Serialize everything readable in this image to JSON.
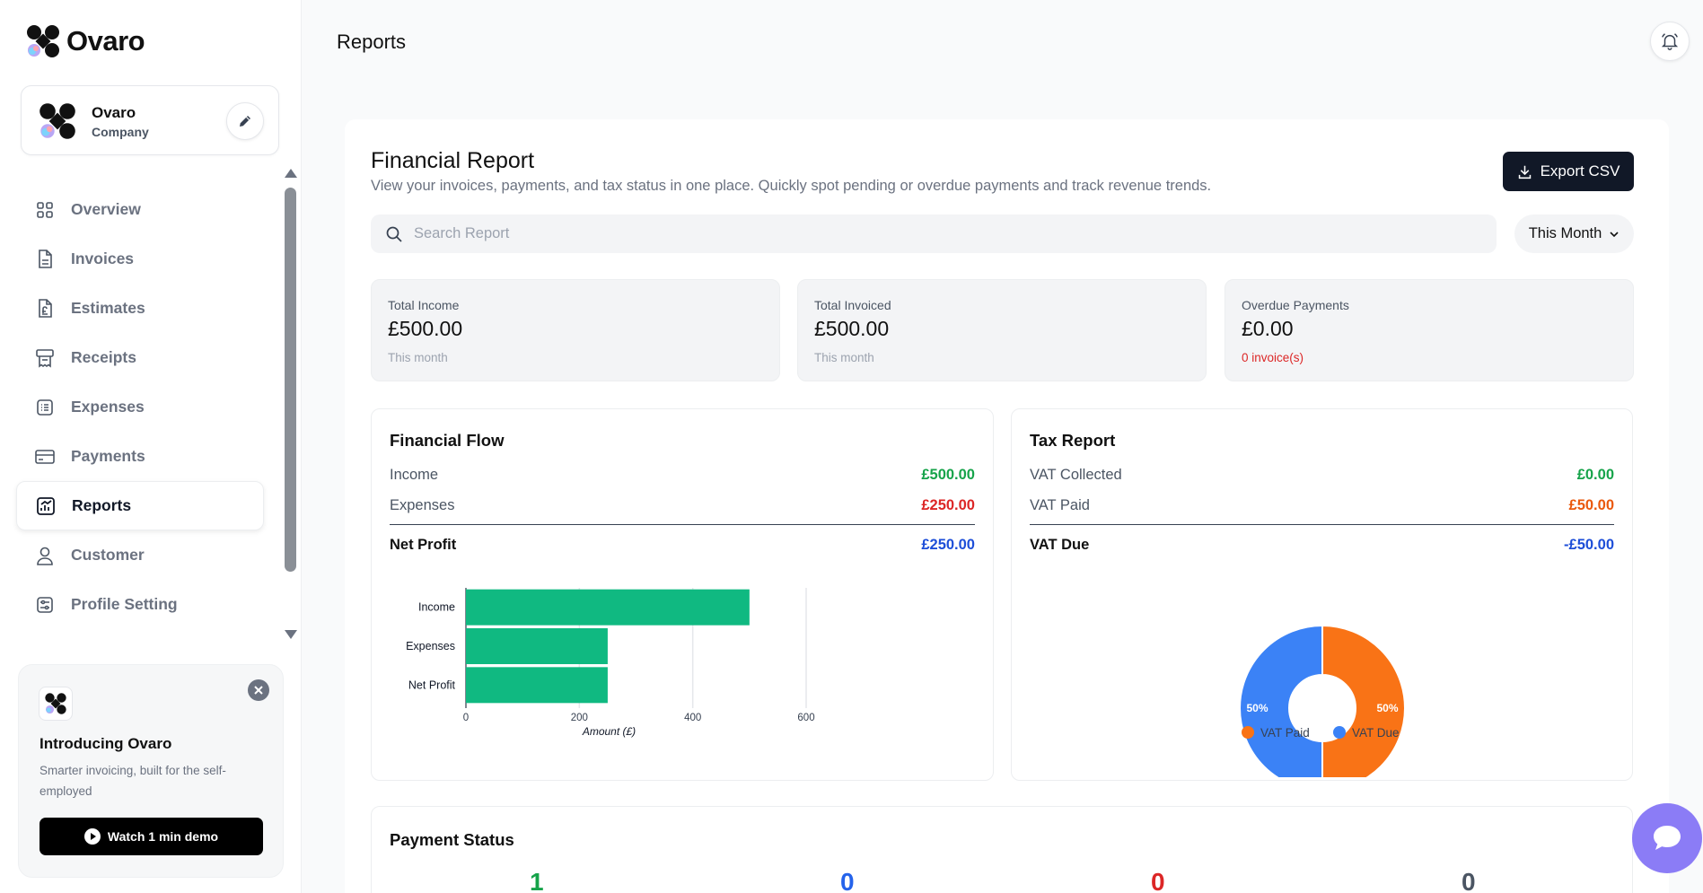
{
  "app": {
    "name": "Ovaro"
  },
  "company": {
    "name": "Ovaro",
    "type": "Company"
  },
  "nav": [
    {
      "label": "Overview",
      "icon": "grid-icon"
    },
    {
      "label": "Invoices",
      "icon": "document-icon"
    },
    {
      "label": "Estimates",
      "icon": "pound-document-icon"
    },
    {
      "label": "Receipts",
      "icon": "receipt-icon"
    },
    {
      "label": "Expenses",
      "icon": "list-icon"
    },
    {
      "label": "Payments",
      "icon": "card-icon"
    },
    {
      "label": "Reports",
      "icon": "chart-icon",
      "active": true
    },
    {
      "label": "Customer",
      "icon": "user-icon"
    },
    {
      "label": "Profile Setting",
      "icon": "settings-icon"
    }
  ],
  "promo": {
    "title": "Introducing Ovaro",
    "text": "Smarter invoicing, built for the self-employed",
    "button": "Watch 1 min demo"
  },
  "header": {
    "title": "Reports"
  },
  "report": {
    "title": "Financial Report",
    "description": "View your invoices, payments, and tax status in one place. Quickly spot pending or overdue payments and track revenue trends.",
    "export_label": "Export CSV",
    "search_placeholder": "Search Report",
    "period": "This Month"
  },
  "stats": [
    {
      "label": "Total Income",
      "value": "£500.00",
      "sub": "This month"
    },
    {
      "label": "Total Invoiced",
      "value": "£500.00",
      "sub": "This month"
    },
    {
      "label": "Overdue Payments",
      "value": "£0.00",
      "sub": "0 invoice(s)"
    }
  ],
  "financial_flow": {
    "title": "Financial Flow",
    "rows": [
      {
        "label": "Income",
        "value": "£500.00",
        "color": "#16a34a"
      },
      {
        "label": "Expenses",
        "value": "£250.00",
        "color": "#dc2626"
      }
    ],
    "total": {
      "label": "Net Profit",
      "value": "£250.00",
      "color": "#1d4ed8"
    }
  },
  "tax_report": {
    "title": "Tax Report",
    "rows": [
      {
        "label": "VAT Collected",
        "value": "£0.00",
        "color": "#16a34a"
      },
      {
        "label": "VAT Paid",
        "value": "£50.00",
        "color": "#ea580c"
      }
    ],
    "total": {
      "label": "VAT Due",
      "value": "-£50.00",
      "color": "#1d4ed8"
    }
  },
  "payment_status": {
    "title": "Payment Status",
    "counts": [
      {
        "value": "1",
        "color": "#16a34a"
      },
      {
        "value": "0",
        "color": "#2563eb"
      },
      {
        "value": "0",
        "color": "#dc2626"
      },
      {
        "value": "0",
        "color": "#4b5563"
      }
    ]
  },
  "chart_data": [
    {
      "type": "bar",
      "orientation": "horizontal",
      "categories": [
        "Income",
        "Expenses",
        "Net Profit"
      ],
      "values": [
        500,
        250,
        250
      ],
      "xlabel": "Amount (£)",
      "xlim": [
        0,
        600
      ],
      "xticks": [
        0,
        200,
        400,
        600
      ],
      "color": "#10b981",
      "grid": true
    },
    {
      "type": "pie",
      "donut": true,
      "labels": [
        "VAT Paid",
        "VAT Due"
      ],
      "values": [
        50,
        50
      ],
      "percent_labels": [
        "50%",
        "50%"
      ],
      "colors": [
        "#f97316",
        "#3b82f6"
      ],
      "legend": "bottom"
    }
  ]
}
